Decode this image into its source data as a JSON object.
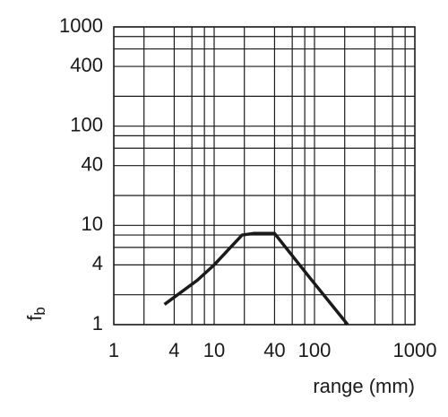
{
  "chart_data": {
    "type": "line",
    "xlabel": "range (mm)",
    "ylabel": "f",
    "ylabel_subscript": "b",
    "xscale": "log",
    "yscale": "log",
    "xlim": [
      1,
      1000
    ],
    "ylim": [
      1,
      1000
    ],
    "xticks": [
      1,
      4,
      10,
      40,
      100,
      1000
    ],
    "yticks": [
      1,
      4,
      10,
      40,
      100,
      400,
      1000
    ],
    "xgrid": [
      1,
      2,
      4,
      6,
      8,
      10,
      20,
      40,
      60,
      80,
      100,
      200,
      400,
      600,
      800,
      1000
    ],
    "ygrid": [
      1,
      2,
      4,
      6,
      8,
      10,
      20,
      40,
      60,
      80,
      100,
      200,
      400,
      600,
      800,
      1000
    ],
    "grid": true,
    "series": [
      {
        "color": "#1a1a1a",
        "x": [
          3.2,
          6.8,
          10,
          19,
          25,
          40,
          89,
          214
        ],
        "values": [
          1.6,
          2.8,
          4,
          8,
          8.3,
          8.3,
          3,
          1
        ]
      }
    ]
  }
}
